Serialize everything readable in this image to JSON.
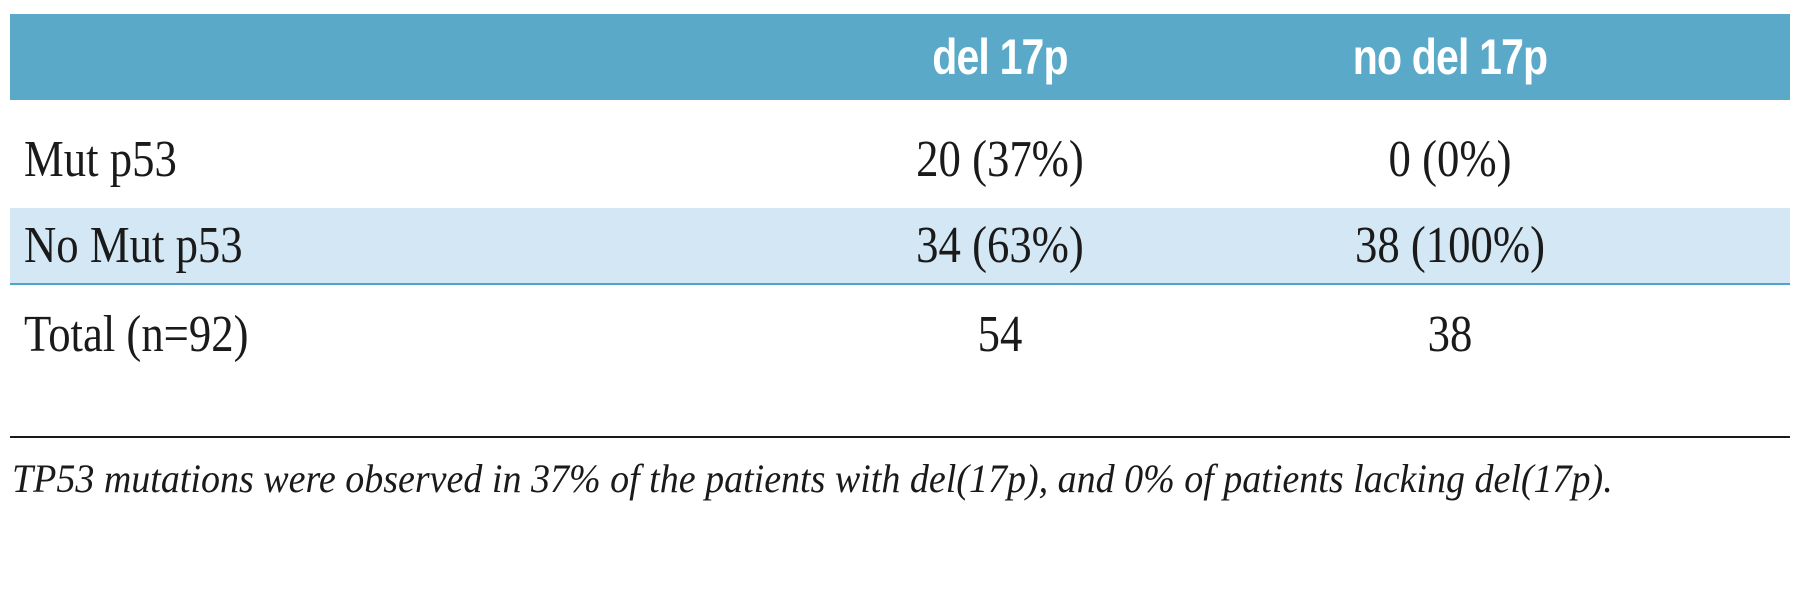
{
  "table": {
    "headers": [
      "",
      "del 17p",
      "no del 17p"
    ],
    "rows": [
      {
        "label": "Mut p53",
        "del_17p": "20 (37%)",
        "no_del_17p": "0 (0%)"
      },
      {
        "label": "No Mut p53",
        "del_17p": "34 (63%)",
        "no_del_17p": "38 (100%)"
      },
      {
        "label": "Total (n=92)",
        "del_17p": "54",
        "no_del_17p": "38"
      }
    ]
  },
  "caption": "TP53 mutations were observed in 37% of the patients with del(17p), and 0% of patients lacking del(17p).",
  "colors": {
    "header_bg": "#5aa9c8",
    "header_text": "#ffffff",
    "highlight_row_bg": "#d4e7f4",
    "row_divider": "#4ca6c9"
  }
}
